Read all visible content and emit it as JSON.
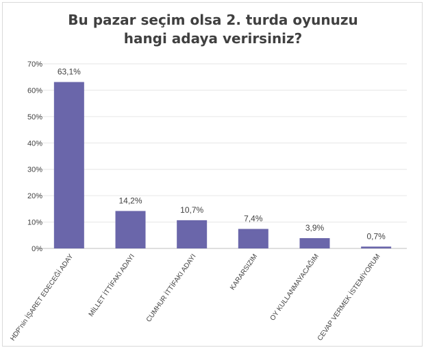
{
  "title_lines": [
    "Bu pazar seçim olsa 2. turda oyunuzu",
    "hangi adaya verirsiniz?"
  ],
  "chart_data": {
    "type": "bar",
    "title": "Bu pazar seçim olsa 2. turda oyunuzu hangi adaya verirsiniz?",
    "categories": [
      "HDP'nin İŞARET EDECEĞİ ADAY",
      "MİLLET İTTİFAKI ADAYI",
      "CUMHUR İTTİFAKI ADAYI",
      "KARARSIZIM",
      "OY KULLANMAYACAĞIM",
      "CEVAP VERMEK İSTEMİYORUM"
    ],
    "values": [
      63.1,
      14.2,
      10.7,
      7.4,
      3.9,
      0.7
    ],
    "data_labels": [
      "63,1%",
      "14,2%",
      "10,7%",
      "7,4%",
      "3,9%",
      "0,7%"
    ],
    "yticks": [
      0,
      10,
      20,
      30,
      40,
      50,
      60,
      70
    ],
    "ytick_labels": [
      "0%",
      "10%",
      "20%",
      "30%",
      "40%",
      "50%",
      "60%",
      "70%"
    ],
    "ylim": [
      0,
      70
    ],
    "xlabel": "",
    "ylabel": "",
    "grid": true,
    "legend": "none",
    "colors": {
      "bar": "#6a66aa",
      "grid": "#e6e6e6",
      "axis": "#bfbfbf",
      "text": "#404040"
    }
  }
}
